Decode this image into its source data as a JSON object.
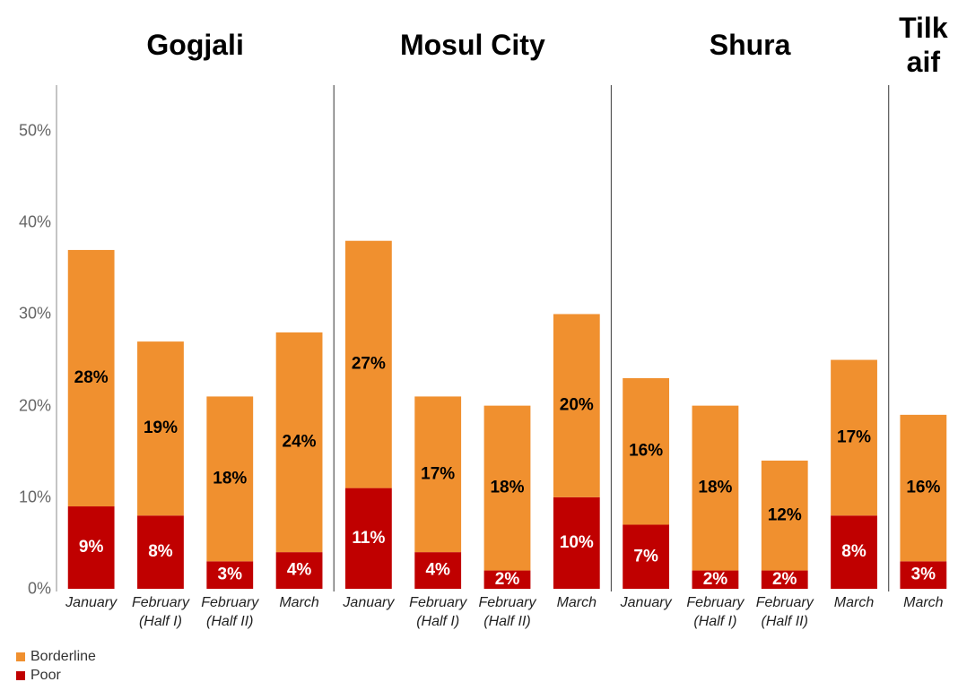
{
  "chart_data": {
    "type": "stacked_bar",
    "groups": [
      {
        "name": "Gogjali",
        "categories": [
          "January",
          "February\n(Half I)",
          "February\n(Half II)",
          "March"
        ]
      },
      {
        "name": "Mosul City",
        "categories": [
          "January",
          "February\n(Half I)",
          "February\n(Half II)",
          "March"
        ]
      },
      {
        "name": "Shura",
        "categories": [
          "January",
          "February\n(Half I)",
          "February\n(Half II)",
          "March"
        ]
      },
      {
        "name": "Tilk\naif",
        "categories": [
          "March"
        ]
      }
    ],
    "series": [
      {
        "name": "Borderline",
        "color": "#f0902f",
        "values": [
          28,
          19,
          18,
          24,
          27,
          17,
          18,
          20,
          16,
          18,
          12,
          17,
          16
        ],
        "value_labels": [
          "28%",
          "19%",
          "18%",
          "24%",
          "27%",
          "17%",
          "18%",
          "20%",
          "16%",
          "18%",
          "12%",
          "17%",
          "16%"
        ]
      },
      {
        "name": "Poor",
        "color": "#c00000",
        "values": [
          9,
          8,
          3,
          4,
          11,
          4,
          2,
          10,
          7,
          2,
          2,
          8,
          3
        ],
        "value_labels": [
          "9%",
          "8%",
          "3%",
          "4%",
          "11%",
          "4%",
          "2%",
          "10%",
          "7%",
          "2%",
          "2%",
          "8%",
          "3%"
        ]
      }
    ],
    "ylim": [
      0,
      55
    ],
    "yticks": [
      {
        "value": 0,
        "label": "0%"
      },
      {
        "value": 10,
        "label": "10%"
      },
      {
        "value": 20,
        "label": "20%"
      },
      {
        "value": 30,
        "label": "30%"
      },
      {
        "value": 40,
        "label": "40%"
      },
      {
        "value": 50,
        "label": "50%"
      }
    ],
    "grid": false,
    "legend": "bottom-left"
  }
}
